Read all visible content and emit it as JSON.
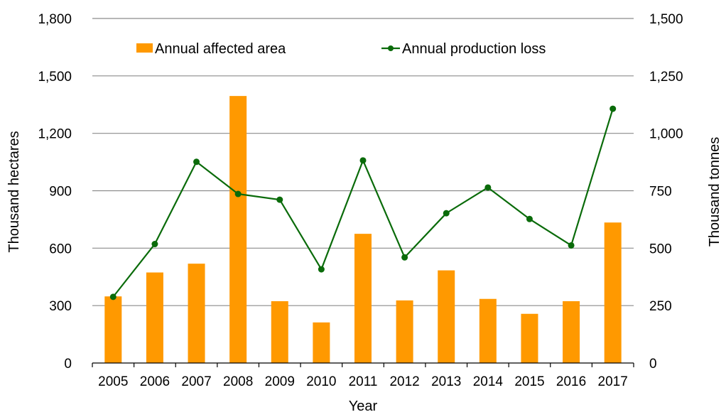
{
  "chart_data": {
    "type": "bar+line",
    "title": "",
    "xlabel": "Year",
    "ylabel_left": "Thousand hectares",
    "ylabel_right": "Thousand tonnes",
    "categories": [
      "2005",
      "2006",
      "2007",
      "2008",
      "2009",
      "2010",
      "2011",
      "2012",
      "2013",
      "2014",
      "2015",
      "2016",
      "2017"
    ],
    "series": [
      {
        "name": "Annual affected area",
        "type": "bar",
        "axis": "left",
        "color": "#FF9900",
        "values": [
          348,
          473,
          519,
          1395,
          323,
          212,
          675,
          327,
          484,
          335,
          257,
          323,
          734
        ]
      },
      {
        "name": "Annual production loss",
        "type": "line",
        "axis": "right",
        "color": "#0A6B0A",
        "marker": "circle",
        "values": [
          288,
          518,
          876,
          736,
          711,
          408,
          882,
          460,
          652,
          764,
          627,
          512,
          1107
        ]
      }
    ],
    "ylim_left": [
      0,
      1800
    ],
    "yticks_left": [
      0,
      300,
      600,
      900,
      1200,
      1500,
      1800
    ],
    "ytick_labels_left": [
      "0",
      "300",
      "600",
      "900",
      "1,200",
      "1,500",
      "1,800"
    ],
    "ylim_right": [
      0,
      1500
    ],
    "yticks_right": [
      0,
      250,
      500,
      750,
      1000,
      1250,
      1500
    ],
    "ytick_labels_right": [
      "0",
      "250",
      "500",
      "750",
      "1,000",
      "1,250",
      "1,500"
    ],
    "grid": "horizontal",
    "gridline_color": "#8C8C8C",
    "legend": {
      "placement": "top-center",
      "entries": [
        "Annual affected area",
        "Annual production loss"
      ]
    }
  }
}
